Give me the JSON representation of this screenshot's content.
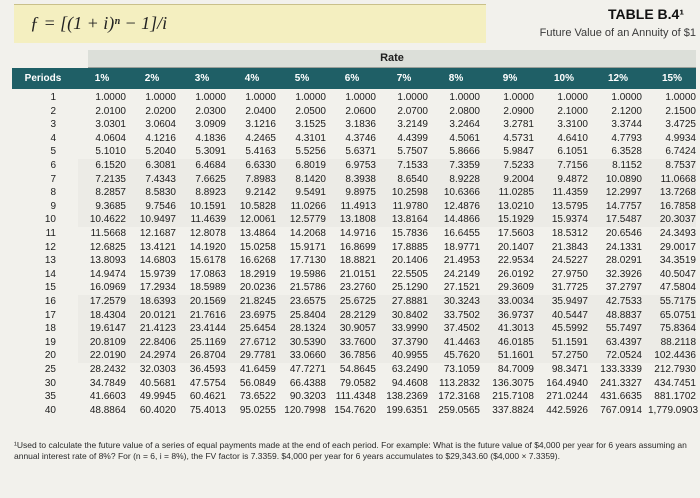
{
  "header": {
    "formula": "ƒ = [(1 + i)ⁿ − 1]/i",
    "table_id": "TABLE B.4¹",
    "table_desc": "Future Value of an Annuity of $1"
  },
  "table": {
    "rate_label": "Rate",
    "period_label": "Periods",
    "rate_headers": [
      "1%",
      "2%",
      "3%",
      "4%",
      "5%",
      "6%",
      "7%",
      "8%",
      "9%",
      "10%",
      "12%",
      "15%"
    ],
    "rows": [
      {
        "period": "1",
        "values": [
          "1.0000",
          "1.0000",
          "1.0000",
          "1.0000",
          "1.0000",
          "1.0000",
          "1.0000",
          "1.0000",
          "1.0000",
          "1.0000",
          "1.0000",
          "1.0000"
        ]
      },
      {
        "period": "2",
        "values": [
          "2.0100",
          "2.0200",
          "2.0300",
          "2.0400",
          "2.0500",
          "2.0600",
          "2.0700",
          "2.0800",
          "2.0900",
          "2.1000",
          "2.1200",
          "2.1500"
        ]
      },
      {
        "period": "3",
        "values": [
          "3.0301",
          "3.0604",
          "3.0909",
          "3.1216",
          "3.1525",
          "3.1836",
          "3.2149",
          "3.2464",
          "3.2781",
          "3.3100",
          "3.3744",
          "3.4725"
        ]
      },
      {
        "period": "4",
        "values": [
          "4.0604",
          "4.1216",
          "4.1836",
          "4.2465",
          "4.3101",
          "4.3746",
          "4.4399",
          "4.5061",
          "4.5731",
          "4.6410",
          "4.7793",
          "4.9934"
        ]
      },
      {
        "period": "5",
        "values": [
          "5.1010",
          "5.2040",
          "5.3091",
          "5.4163",
          "5.5256",
          "5.6371",
          "5.7507",
          "5.8666",
          "5.9847",
          "6.1051",
          "6.3528",
          "6.7424"
        ]
      },
      {
        "period": "6",
        "values": [
          "6.1520",
          "6.3081",
          "6.4684",
          "6.6330",
          "6.8019",
          "6.9753",
          "7.1533",
          "7.3359",
          "7.5233",
          "7.7156",
          "8.1152",
          "8.7537"
        ]
      },
      {
        "period": "7",
        "values": [
          "7.2135",
          "7.4343",
          "7.6625",
          "7.8983",
          "8.1420",
          "8.3938",
          "8.6540",
          "8.9228",
          "9.2004",
          "9.4872",
          "10.0890",
          "11.0668"
        ]
      },
      {
        "period": "8",
        "values": [
          "8.2857",
          "8.5830",
          "8.8923",
          "9.2142",
          "9.5491",
          "9.8975",
          "10.2598",
          "10.6366",
          "11.0285",
          "11.4359",
          "12.2997",
          "13.7268"
        ]
      },
      {
        "period": "9",
        "values": [
          "9.3685",
          "9.7546",
          "10.1591",
          "10.5828",
          "11.0266",
          "11.4913",
          "11.9780",
          "12.4876",
          "13.0210",
          "13.5795",
          "14.7757",
          "16.7858"
        ]
      },
      {
        "period": "10",
        "values": [
          "10.4622",
          "10.9497",
          "11.4639",
          "12.0061",
          "12.5779",
          "13.1808",
          "13.8164",
          "14.4866",
          "15.1929",
          "15.9374",
          "17.5487",
          "20.3037"
        ]
      },
      {
        "period": "11",
        "values": [
          "11.5668",
          "12.1687",
          "12.8078",
          "13.4864",
          "14.2068",
          "14.9716",
          "15.7836",
          "16.6455",
          "17.5603",
          "18.5312",
          "20.6546",
          "24.3493"
        ]
      },
      {
        "period": "12",
        "values": [
          "12.6825",
          "13.4121",
          "14.1920",
          "15.0258",
          "15.9171",
          "16.8699",
          "17.8885",
          "18.9771",
          "20.1407",
          "21.3843",
          "24.1331",
          "29.0017"
        ]
      },
      {
        "period": "13",
        "values": [
          "13.8093",
          "14.6803",
          "15.6178",
          "16.6268",
          "17.7130",
          "18.8821",
          "20.1406",
          "21.4953",
          "22.9534",
          "24.5227",
          "28.0291",
          "34.3519"
        ]
      },
      {
        "period": "14",
        "values": [
          "14.9474",
          "15.9739",
          "17.0863",
          "18.2919",
          "19.5986",
          "21.0151",
          "22.5505",
          "24.2149",
          "26.0192",
          "27.9750",
          "32.3926",
          "40.5047"
        ]
      },
      {
        "period": "15",
        "values": [
          "16.0969",
          "17.2934",
          "18.5989",
          "20.0236",
          "21.5786",
          "23.2760",
          "25.1290",
          "27.1521",
          "29.3609",
          "31.7725",
          "37.2797",
          "47.5804"
        ]
      },
      {
        "period": "16",
        "values": [
          "17.2579",
          "18.6393",
          "20.1569",
          "21.8245",
          "23.6575",
          "25.6725",
          "27.8881",
          "30.3243",
          "33.0034",
          "35.9497",
          "42.7533",
          "55.7175"
        ]
      },
      {
        "period": "17",
        "values": [
          "18.4304",
          "20.0121",
          "21.7616",
          "23.6975",
          "25.8404",
          "28.2129",
          "30.8402",
          "33.7502",
          "36.9737",
          "40.5447",
          "48.8837",
          "65.0751"
        ]
      },
      {
        "period": "18",
        "values": [
          "19.6147",
          "21.4123",
          "23.4144",
          "25.6454",
          "28.1324",
          "30.9057",
          "33.9990",
          "37.4502",
          "41.3013",
          "45.5992",
          "55.7497",
          "75.8364"
        ]
      },
      {
        "period": "19",
        "values": [
          "20.8109",
          "22.8406",
          "25.1169",
          "27.6712",
          "30.5390",
          "33.7600",
          "37.3790",
          "41.4463",
          "46.0185",
          "51.1591",
          "63.4397",
          "88.2118"
        ]
      },
      {
        "period": "20",
        "values": [
          "22.0190",
          "24.2974",
          "26.8704",
          "29.7781",
          "33.0660",
          "36.7856",
          "40.9955",
          "45.7620",
          "51.1601",
          "57.2750",
          "72.0524",
          "102.4436"
        ]
      },
      {
        "period": "25",
        "values": [
          "28.2432",
          "32.0303",
          "36.4593",
          "41.6459",
          "47.7271",
          "54.8645",
          "63.2490",
          "73.1059",
          "84.7009",
          "98.3471",
          "133.3339",
          "212.7930"
        ]
      },
      {
        "period": "30",
        "values": [
          "34.7849",
          "40.5681",
          "47.5754",
          "56.0849",
          "66.4388",
          "79.0582",
          "94.4608",
          "113.2832",
          "136.3075",
          "164.4940",
          "241.3327",
          "434.7451"
        ]
      },
      {
        "period": "35",
        "values": [
          "41.6603",
          "49.9945",
          "60.4621",
          "73.6522",
          "90.3203",
          "111.4348",
          "138.2369",
          "172.3168",
          "215.7108",
          "271.0244",
          "431.6635",
          "881.1702"
        ]
      },
      {
        "period": "40",
        "values": [
          "48.8864",
          "60.4020",
          "75.4013",
          "95.0255",
          "120.7998",
          "154.7620",
          "199.6351",
          "259.0565",
          "337.8824",
          "442.5926",
          "767.0914",
          "1,779.0903"
        ]
      }
    ]
  },
  "footnote": "¹Used to calculate the future value of a series of equal payments made at the end of each period. For example: What is the future value of $4,000 per year for 6 years assuming an annual interest rate of 8%? For (n = 6, i = 8%), the FV factor is 7.3359. $4,000 per year for 6 years accumulates to $29,343.60 ($4,000 × 7.3359)."
}
